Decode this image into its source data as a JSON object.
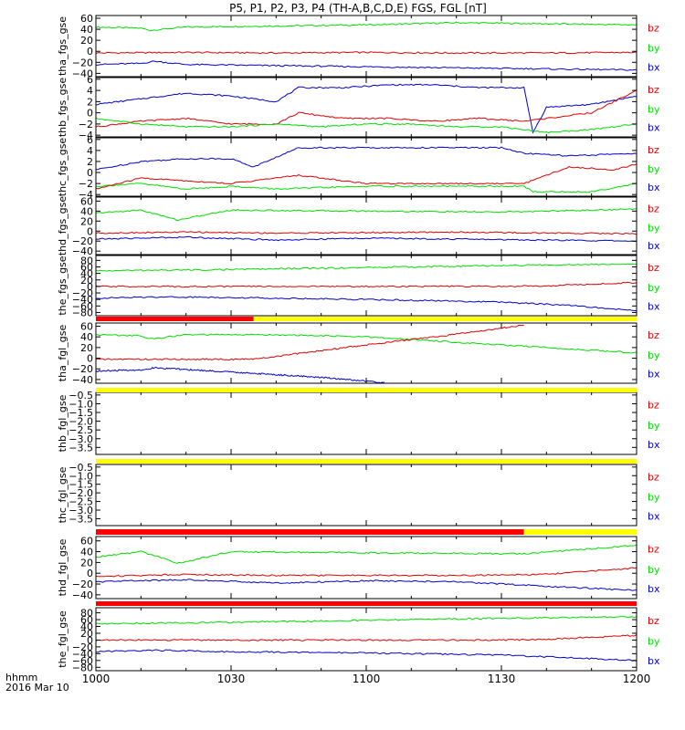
{
  "chart_data": {
    "type": "line",
    "title": "P5, P1, P2, P3, P4 (TH-A,B,C,D,E) FGS, FGL [nT]",
    "x_axis": {
      "range": [
        "10:00",
        "12:00"
      ],
      "tick_labels": [
        "1000",
        "1030",
        "1100",
        "1130",
        "1200"
      ],
      "format_label": "hhmm",
      "date_label": "2016 Mar 10"
    },
    "component_labels": [
      "bz",
      "by",
      "bx"
    ],
    "component_colors": {
      "bz": "#dd0000",
      "by": "#00dd00",
      "bx": "#0000cc"
    },
    "panels": [
      {
        "ylabel": "tha_fgs_gse",
        "ylim": [
          -46,
          65
        ],
        "ytick_labels": [
          "60",
          "40",
          "20",
          "0",
          "−20",
          "−40"
        ],
        "series": [
          {
            "name": "by",
            "x": [
              "10:00",
              "10:10",
              "10:12",
              "10:20",
              "10:40",
              "11:00",
              "11:20",
              "11:40",
              "12:00"
            ],
            "values": [
              44,
              42,
              38,
              44,
              46,
              48,
              52,
              50,
              48
            ]
          },
          {
            "name": "bz",
            "x": [
              "10:00",
              "10:20",
              "10:40",
              "11:00",
              "11:20",
              "11:40",
              "12:00"
            ],
            "values": [
              -3,
              -2,
              -3,
              -2,
              -3,
              -3,
              -2
            ]
          },
          {
            "name": "bx",
            "x": [
              "10:00",
              "10:10",
              "10:13",
              "10:20",
              "10:40",
              "11:00",
              "11:20",
              "11:40",
              "12:00"
            ],
            "values": [
              -24,
              -22,
              -18,
              -24,
              -26,
              -28,
              -30,
              -32,
              -34
            ]
          }
        ]
      },
      {
        "ylabel": "thb_fgs_gse",
        "ylim": [
          -4.3,
          6.3
        ],
        "ytick_labels": [
          "6",
          "4",
          "2",
          "0",
          "−2",
          "−4"
        ],
        "series": [
          {
            "name": "bx",
            "x": [
              "10:00",
              "10:10",
              "10:20",
              "10:30",
              "10:40",
              "10:45",
              "10:55",
              "11:05",
              "11:15",
              "11:25",
              "11:35",
              "11:37",
              "11:40",
              "11:50",
              "12:00"
            ],
            "values": [
              1.5,
              2.5,
              3.5,
              3,
              2,
              4.5,
              4.5,
              5,
              5,
              4.5,
              4.5,
              -3.5,
              1,
              1.5,
              3
            ]
          },
          {
            "name": "bz",
            "x": [
              "10:00",
              "10:10",
              "10:20",
              "10:30",
              "10:40",
              "10:45",
              "10:55",
              "11:05",
              "11:15",
              "11:25",
              "11:35",
              "11:40",
              "11:50",
              "12:00"
            ],
            "values": [
              -2.5,
              -1.5,
              -1,
              -2,
              -2,
              0,
              -1,
              -1,
              -1.5,
              -1,
              -1.5,
              -1,
              0,
              4
            ]
          },
          {
            "name": "by",
            "x": [
              "10:00",
              "10:10",
              "10:20",
              "10:30",
              "10:40",
              "10:50",
              "11:00",
              "11:10",
              "11:20",
              "11:30",
              "11:40",
              "11:50",
              "12:00"
            ],
            "values": [
              -1,
              -2,
              -2.5,
              -2.5,
              -2,
              -2.5,
              -2,
              -2,
              -2.5,
              -2.5,
              -3.5,
              -3,
              -2
            ]
          }
        ]
      },
      {
        "ylabel": "thc_fgs_gse",
        "ylim": [
          -4.3,
          6.3
        ],
        "ytick_labels": [
          "6",
          "4",
          "2",
          "0",
          "−2",
          "−4"
        ],
        "series": [
          {
            "name": "bx",
            "x": [
              "10:00",
              "10:10",
              "10:20",
              "10:30",
              "10:35",
              "10:45",
              "11:00",
              "11:15",
              "11:30",
              "11:35",
              "11:45",
              "12:00"
            ],
            "values": [
              0.5,
              2,
              2.5,
              2.5,
              1,
              4.5,
              4.5,
              4.5,
              4.5,
              3.5,
              3,
              3.5
            ]
          },
          {
            "name": "by",
            "x": [
              "10:00",
              "10:10",
              "10:20",
              "10:30",
              "10:40",
              "11:00",
              "11:20",
              "11:35",
              "11:37",
              "11:50",
              "12:00"
            ],
            "values": [
              -2.5,
              -2,
              -3,
              -2.5,
              -3,
              -2.5,
              -2.5,
              -2.5,
              -3.5,
              -3.5,
              -2
            ]
          },
          {
            "name": "bz",
            "x": [
              "10:00",
              "10:10",
              "10:20",
              "10:30",
              "10:45",
              "11:00",
              "11:20",
              "11:35",
              "11:45",
              "11:55",
              "12:00"
            ],
            "values": [
              -3,
              -1,
              -1.5,
              -2,
              -0.5,
              -2,
              -2,
              -2,
              1,
              0.5,
              1.5
            ]
          }
        ]
      },
      {
        "ylabel": "thd_fgs_gse",
        "ylim": [
          -47,
          68
        ],
        "ytick_labels": [
          "60",
          "40",
          "20",
          "0",
          "−20",
          "−40"
        ],
        "series": [
          {
            "name": "by",
            "x": [
              "10:00",
              "10:10",
              "10:15",
              "10:18",
              "10:30",
              "11:00",
              "11:30",
              "12:00"
            ],
            "values": [
              36,
              42,
              30,
              22,
              42,
              40,
              38,
              44
            ]
          },
          {
            "name": "bz",
            "x": [
              "10:00",
              "10:20",
              "10:40",
              "11:00",
              "11:20",
              "11:40",
              "12:00"
            ],
            "values": [
              -4,
              -2,
              -4,
              -3,
              -2,
              -4,
              -5
            ]
          },
          {
            "name": "bx",
            "x": [
              "10:00",
              "10:20",
              "10:40",
              "11:00",
              "11:20",
              "11:40",
              "12:00"
            ],
            "values": [
              -16,
              -12,
              -18,
              -14,
              -16,
              -18,
              -20
            ]
          }
        ]
      },
      {
        "ylabel": "the_fgs_gse",
        "ylim": [
          -90,
          95
        ],
        "ytick_labels": [
          "80",
          "60",
          "40",
          "20",
          "0",
          "−20",
          "−40",
          "−60",
          "−80"
        ],
        "series": [
          {
            "name": "by",
            "x": [
              "10:00",
              "10:30",
              "11:00",
              "11:30",
              "12:00"
            ],
            "values": [
              48,
              52,
              58,
              64,
              70
            ]
          },
          {
            "name": "bz",
            "x": [
              "10:00",
              "10:30",
              "11:00",
              "11:30",
              "11:40",
              "12:00"
            ],
            "values": [
              0,
              0,
              0,
              0,
              2,
              12
            ]
          },
          {
            "name": "bx",
            "x": [
              "10:00",
              "10:15",
              "10:30",
              "11:00",
              "11:30",
              "11:45",
              "12:00"
            ],
            "values": [
              -36,
              -32,
              -34,
              -40,
              -48,
              -58,
              -75
            ]
          }
        ]
      },
      {
        "ylabel": "tha_fgl_gse",
        "ylim": [
          -47,
          66
        ],
        "ytick_labels": [
          "60",
          "40",
          "20",
          "0",
          "−20",
          "−40"
        ],
        "series": [
          {
            "name": "by",
            "x": [
              "10:00",
              "10:10",
              "10:12",
              "10:20",
              "10:40",
              "11:00",
              "11:20",
              "11:40",
              "12:00"
            ],
            "values": [
              44,
              42,
              36,
              44,
              44,
              40,
              30,
              20,
              10
            ]
          },
          {
            "name": "bz",
            "x": [
              "10:00",
              "10:30",
              "10:35",
              "11:00",
              "11:20",
              "11:35"
            ],
            "values": [
              -2,
              -2,
              -2,
              25,
              45,
              62
            ]
          },
          {
            "name": "bx",
            "x": [
              "10:00",
              "10:10",
              "10:13",
              "10:30",
              "10:50",
              "11:04"
            ],
            "values": [
              -24,
              -22,
              -18,
              -26,
              -36,
              -46
            ]
          }
        ]
      },
      {
        "ylabel": "thb_fgl_gse",
        "ylim": [
          -3.9,
          -0.35
        ],
        "ytick_labels": [
          "−0.5",
          "−1.0",
          "−1.5",
          "−2.0",
          "−2.5",
          "−3.0",
          "−3.5"
        ],
        "series": []
      },
      {
        "ylabel": "thc_fgl_gse",
        "ylim": [
          -3.9,
          -0.35
        ],
        "ytick_labels": [
          "−0.5",
          "−1.0",
          "−1.5",
          "−2.0",
          "−2.5",
          "−3.0",
          "−3.5"
        ],
        "series": []
      },
      {
        "ylabel": "thd_fgl_gse",
        "ylim": [
          -47,
          68
        ],
        "ytick_labels": [
          "60",
          "40",
          "20",
          "0",
          "−20",
          "−40"
        ],
        "series": [
          {
            "name": "by",
            "x": [
              "10:00",
              "10:10",
              "10:15",
              "10:18",
              "10:30",
              "11:00",
              "11:35",
              "12:00"
            ],
            "values": [
              30,
              40,
              28,
              18,
              40,
              38,
              36,
              52
            ]
          },
          {
            "name": "bz",
            "x": [
              "10:00",
              "10:20",
              "10:40",
              "11:00",
              "11:20",
              "11:40",
              "12:00"
            ],
            "values": [
              -6,
              -2,
              -4,
              -4,
              -4,
              -2,
              10
            ]
          },
          {
            "name": "bx",
            "x": [
              "10:00",
              "10:20",
              "10:40",
              "11:00",
              "11:20",
              "11:40",
              "12:00"
            ],
            "values": [
              -16,
              -12,
              -18,
              -14,
              -16,
              -24,
              -32
            ]
          }
        ]
      },
      {
        "ylabel": "the_fgl_gse",
        "ylim": [
          -90,
          95
        ],
        "ytick_labels": [
          "80",
          "60",
          "40",
          "20",
          "0",
          "−20",
          "−40",
          "−60",
          "−80"
        ],
        "series": [
          {
            "name": "by",
            "x": [
              "10:00",
              "10:30",
              "11:00",
              "11:30",
              "12:00"
            ],
            "values": [
              48,
              52,
              58,
              64,
              68
            ]
          },
          {
            "name": "bz",
            "x": [
              "10:00",
              "10:30",
              "11:00",
              "11:30",
              "11:40",
              "12:00"
            ],
            "values": [
              0,
              0,
              0,
              0,
              2,
              14
            ]
          },
          {
            "name": "bx",
            "x": [
              "10:00",
              "10:15",
              "10:30",
              "11:00",
              "11:30",
              "11:45",
              "12:00"
            ],
            "values": [
              -34,
              -30,
              -34,
              -38,
              -44,
              -52,
              -60
            ]
          }
        ]
      }
    ],
    "mode_bars": [
      {
        "after_panel": "the_fgs_gse",
        "segments": [
          {
            "x": [
              "10:00",
              "10:35"
            ],
            "color": "#ff0000"
          },
          {
            "x": [
              "10:35",
              "12:00"
            ],
            "color": "#ffff00"
          }
        ]
      },
      {
        "after_panel": "tha_fgl_gse",
        "segments": [
          {
            "x": [
              "10:00",
              "12:00"
            ],
            "color": "#ffff00"
          }
        ]
      },
      {
        "after_panel": "thb_fgl_gse",
        "segments": [
          {
            "x": [
              "10:00",
              "12:00"
            ],
            "color": "#ffff00"
          }
        ]
      },
      {
        "after_panel": "thc_fgl_gse",
        "segments": [
          {
            "x": [
              "10:00",
              "11:35"
            ],
            "color": "#ff0000"
          },
          {
            "x": [
              "11:35",
              "12:00"
            ],
            "color": "#ffff00"
          }
        ]
      },
      {
        "after_panel": "thd_fgl_gse",
        "segments": [
          {
            "x": [
              "10:00",
              "12:00"
            ],
            "color": "#ff0000"
          }
        ]
      }
    ]
  }
}
